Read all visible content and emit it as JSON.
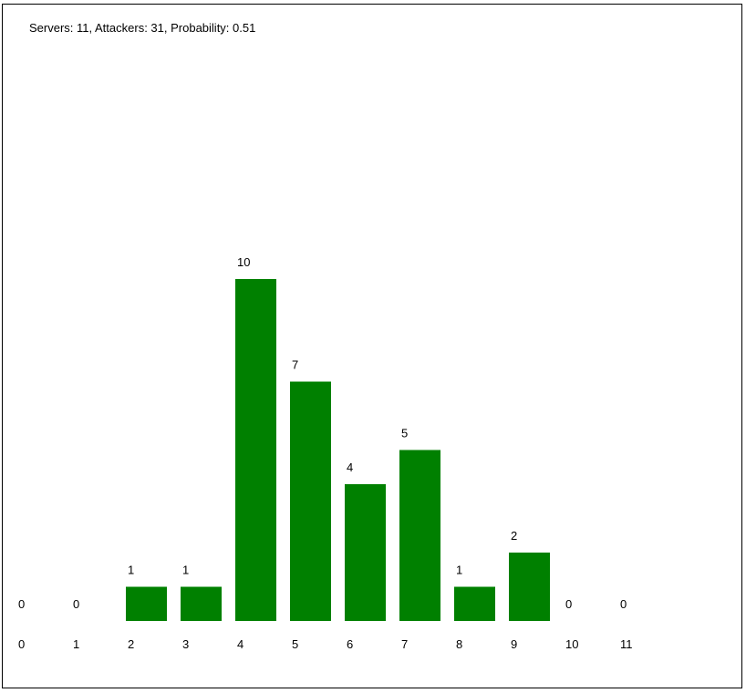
{
  "header": {
    "stats_text": "Servers: 11, Attackers: 31, Probability: 0.51"
  },
  "chart_data": {
    "type": "bar",
    "title": "",
    "xlabel": "",
    "ylabel": "",
    "categories": [
      "0",
      "1",
      "2",
      "3",
      "4",
      "5",
      "6",
      "7",
      "8",
      "9",
      "10",
      "11"
    ],
    "values": [
      0,
      0,
      1,
      1,
      10,
      7,
      4,
      5,
      1,
      2,
      0,
      0
    ],
    "data_labels": [
      "0",
      "0",
      "1",
      "1",
      "10",
      "7",
      "4",
      "5",
      "1",
      "2",
      "0",
      "0"
    ],
    "ylim": [
      0,
      10
    ],
    "grid": false,
    "legend": "none",
    "bar_color": "#008000"
  }
}
